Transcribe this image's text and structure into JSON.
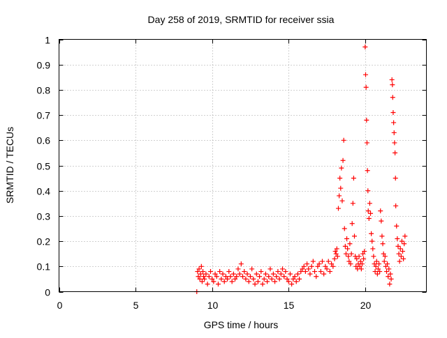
{
  "chart_data": {
    "type": "scatter",
    "title": "Day 258 of 2019, SRMTID for receiver ssia",
    "xlabel": "GPS time / hours",
    "ylabel": "SRMTID / TECUs",
    "xlim": [
      0,
      24
    ],
    "ylim": [
      0,
      1
    ],
    "xticks": [
      0,
      5,
      10,
      15,
      20
    ],
    "xtick_labels": [
      "0",
      "5",
      "10",
      "15",
      "20"
    ],
    "yticks": [
      0,
      0.1,
      0.2,
      0.3,
      0.4,
      0.5,
      0.6,
      0.7,
      0.8,
      0.9,
      1
    ],
    "ytick_labels": [
      "0",
      "0.1",
      "0.2",
      "0.3",
      "0.4",
      "0.5",
      "0.6",
      "0.7",
      "0.8",
      "0.9",
      "1"
    ],
    "grid": true,
    "marker_color": "#ff0000",
    "series": [
      {
        "name": "SRMTID",
        "marker": "plus",
        "points": [
          [
            9.0,
            0.0
          ],
          [
            9.05,
            0.08
          ],
          [
            9.1,
            0.06
          ],
          [
            9.15,
            0.09
          ],
          [
            9.2,
            0.05
          ],
          [
            9.25,
            0.07
          ],
          [
            9.3,
            0.1
          ],
          [
            9.35,
            0.04
          ],
          [
            9.4,
            0.08
          ],
          [
            9.45,
            0.06
          ],
          [
            9.5,
            0.05
          ],
          [
            9.6,
            0.07
          ],
          [
            9.7,
            0.03
          ],
          [
            9.8,
            0.06
          ],
          [
            9.9,
            0.08
          ],
          [
            10.0,
            0.05
          ],
          [
            10.1,
            0.04
          ],
          [
            10.2,
            0.07
          ],
          [
            10.3,
            0.06
          ],
          [
            10.4,
            0.03
          ],
          [
            10.5,
            0.08
          ],
          [
            10.6,
            0.05
          ],
          [
            10.7,
            0.07
          ],
          [
            10.8,
            0.04
          ],
          [
            10.9,
            0.06
          ],
          [
            11.0,
            0.05
          ],
          [
            11.1,
            0.08
          ],
          [
            11.2,
            0.06
          ],
          [
            11.3,
            0.04
          ],
          [
            11.4,
            0.07
          ],
          [
            11.5,
            0.05
          ],
          [
            11.6,
            0.06
          ],
          [
            11.7,
            0.09
          ],
          [
            11.8,
            0.07
          ],
          [
            11.9,
            0.11
          ],
          [
            12.0,
            0.06
          ],
          [
            12.1,
            0.08
          ],
          [
            12.2,
            0.05
          ],
          [
            12.3,
            0.07
          ],
          [
            12.4,
            0.04
          ],
          [
            12.5,
            0.06
          ],
          [
            12.6,
            0.09
          ],
          [
            12.7,
            0.05
          ],
          [
            12.8,
            0.03
          ],
          [
            12.9,
            0.07
          ],
          [
            13.0,
            0.04
          ],
          [
            13.1,
            0.06
          ],
          [
            13.2,
            0.08
          ],
          [
            13.3,
            0.03
          ],
          [
            13.4,
            0.05
          ],
          [
            13.5,
            0.07
          ],
          [
            13.6,
            0.04
          ],
          [
            13.7,
            0.06
          ],
          [
            13.8,
            0.09
          ],
          [
            13.9,
            0.05
          ],
          [
            14.0,
            0.07
          ],
          [
            14.1,
            0.04
          ],
          [
            14.2,
            0.06
          ],
          [
            14.3,
            0.08
          ],
          [
            14.4,
            0.05
          ],
          [
            14.5,
            0.07
          ],
          [
            14.6,
            0.09
          ],
          [
            14.7,
            0.06
          ],
          [
            14.8,
            0.08
          ],
          [
            14.9,
            0.05
          ],
          [
            15.0,
            0.04
          ],
          [
            15.1,
            0.07
          ],
          [
            15.2,
            0.03
          ],
          [
            15.3,
            0.05
          ],
          [
            15.4,
            0.06
          ],
          [
            15.5,
            0.04
          ],
          [
            15.6,
            0.07
          ],
          [
            15.7,
            0.05
          ],
          [
            15.8,
            0.08
          ],
          [
            15.9,
            0.09
          ],
          [
            16.0,
            0.1
          ],
          [
            16.1,
            0.08
          ],
          [
            16.2,
            0.11
          ],
          [
            16.3,
            0.09
          ],
          [
            16.4,
            0.07
          ],
          [
            16.5,
            0.1
          ],
          [
            16.6,
            0.12
          ],
          [
            16.7,
            0.08
          ],
          [
            16.8,
            0.06
          ],
          [
            16.9,
            0.1
          ],
          [
            17.0,
            0.11
          ],
          [
            17.1,
            0.08
          ],
          [
            17.2,
            0.12
          ],
          [
            17.3,
            0.07
          ],
          [
            17.4,
            0.1
          ],
          [
            17.5,
            0.09
          ],
          [
            17.6,
            0.12
          ],
          [
            17.7,
            0.08
          ],
          [
            17.8,
            0.11
          ],
          [
            17.9,
            0.1
          ],
          [
            18.0,
            0.13
          ],
          [
            18.05,
            0.16
          ],
          [
            18.1,
            0.15
          ],
          [
            18.15,
            0.17
          ],
          [
            18.2,
            0.14
          ],
          [
            18.25,
            0.33
          ],
          [
            18.3,
            0.38
          ],
          [
            18.35,
            0.45
          ],
          [
            18.4,
            0.41
          ],
          [
            18.45,
            0.49
          ],
          [
            18.5,
            0.36
          ],
          [
            18.55,
            0.52
          ],
          [
            18.6,
            0.6
          ],
          [
            18.65,
            0.25
          ],
          [
            18.7,
            0.18
          ],
          [
            18.75,
            0.15
          ],
          [
            18.8,
            0.21
          ],
          [
            18.85,
            0.17
          ],
          [
            18.9,
            0.14
          ],
          [
            18.95,
            0.12
          ],
          [
            19.0,
            0.19
          ],
          [
            19.05,
            0.11
          ],
          [
            19.1,
            0.15
          ],
          [
            19.15,
            0.27
          ],
          [
            19.2,
            0.35
          ],
          [
            19.25,
            0.45
          ],
          [
            19.3,
            0.22
          ],
          [
            19.35,
            0.14
          ],
          [
            19.4,
            0.1
          ],
          [
            19.45,
            0.13
          ],
          [
            19.5,
            0.09
          ],
          [
            19.55,
            0.11
          ],
          [
            19.6,
            0.14
          ],
          [
            19.65,
            0.1
          ],
          [
            19.7,
            0.12
          ],
          [
            19.75,
            0.09
          ],
          [
            19.8,
            0.11
          ],
          [
            19.85,
            0.15
          ],
          [
            19.9,
            0.13
          ],
          [
            19.95,
            0.16
          ],
          [
            20.0,
            0.97
          ],
          [
            20.03,
            0.86
          ],
          [
            20.06,
            0.81
          ],
          [
            20.09,
            0.68
          ],
          [
            20.12,
            0.59
          ],
          [
            20.15,
            0.48
          ],
          [
            20.18,
            0.4
          ],
          [
            20.2,
            0.32
          ],
          [
            20.25,
            0.29
          ],
          [
            20.3,
            0.35
          ],
          [
            20.35,
            0.31
          ],
          [
            20.4,
            0.23
          ],
          [
            20.45,
            0.2
          ],
          [
            20.5,
            0.17
          ],
          [
            20.55,
            0.14
          ],
          [
            20.6,
            0.11
          ],
          [
            20.65,
            0.08
          ],
          [
            20.7,
            0.1
          ],
          [
            20.75,
            0.12
          ],
          [
            20.8,
            0.07
          ],
          [
            20.85,
            0.09
          ],
          [
            20.9,
            0.11
          ],
          [
            20.95,
            0.08
          ],
          [
            21.0,
            0.32
          ],
          [
            21.05,
            0.28
          ],
          [
            21.1,
            0.22
          ],
          [
            21.15,
            0.19
          ],
          [
            21.2,
            0.15
          ],
          [
            21.25,
            0.12
          ],
          [
            21.3,
            0.14
          ],
          [
            21.35,
            0.1
          ],
          [
            21.4,
            0.08
          ],
          [
            21.45,
            0.11
          ],
          [
            21.5,
            0.06
          ],
          [
            21.55,
            0.09
          ],
          [
            21.6,
            0.03
          ],
          [
            21.65,
            0.07
          ],
          [
            21.7,
            0.05
          ],
          [
            21.75,
            0.84
          ],
          [
            21.78,
            0.82
          ],
          [
            21.8,
            0.77
          ],
          [
            21.83,
            0.71
          ],
          [
            21.86,
            0.67
          ],
          [
            21.89,
            0.63
          ],
          [
            21.92,
            0.59
          ],
          [
            21.95,
            0.55
          ],
          [
            21.98,
            0.45
          ],
          [
            22.0,
            0.34
          ],
          [
            22.05,
            0.26
          ],
          [
            22.1,
            0.21
          ],
          [
            22.15,
            0.18
          ],
          [
            22.2,
            0.15
          ],
          [
            22.25,
            0.12
          ],
          [
            22.3,
            0.17
          ],
          [
            22.35,
            0.14
          ],
          [
            22.4,
            0.2
          ],
          [
            22.45,
            0.16
          ],
          [
            22.5,
            0.13
          ],
          [
            22.55,
            0.19
          ],
          [
            22.6,
            0.22
          ]
        ]
      }
    ]
  }
}
